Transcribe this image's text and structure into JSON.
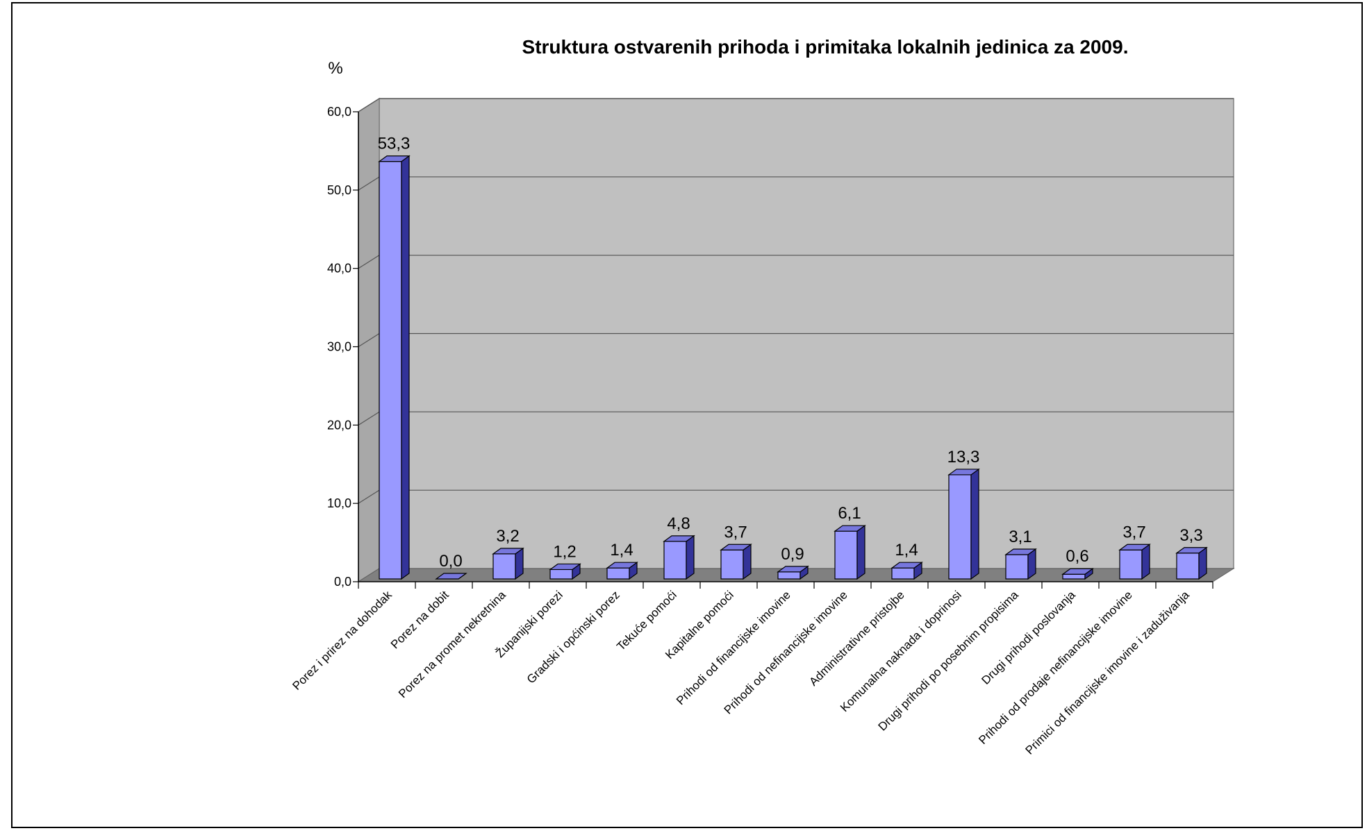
{
  "chart_data": {
    "type": "bar",
    "title": "Struktura ostvarenih prihoda i primitaka lokalnih jedinica za 2009.",
    "ylabel": "%",
    "ylim": [
      0,
      60
    ],
    "yticks": [
      "0,0",
      "10,0",
      "20,0",
      "30,0",
      "40,0",
      "50,0",
      "60,0"
    ],
    "grid": true,
    "categories": [
      "Porez i prirez na dohodak",
      "Porez na dobit",
      "Porez na promet nekretnina",
      "Županijski porezi",
      "Gradski i općinski porez",
      "Tekuće pomoći",
      "Kapitalne pomoći",
      "Prihodi od financijske imovine",
      "Prihodi od nefinancijske imovine",
      "Administrativne pristojbe",
      "Komunalna naknada i doprinosi",
      "Drugi prihodi po posebnim propisima",
      "Drugi prihodi poslovanja",
      "Prihodi od prodaje nefinancijske imovine",
      "Primici od financijske imovine i zaduživanja"
    ],
    "values": [
      53.3,
      0.0,
      3.2,
      1.2,
      1.4,
      4.8,
      3.7,
      0.9,
      6.1,
      1.4,
      13.3,
      3.1,
      0.6,
      3.7,
      3.3
    ],
    "value_labels": [
      "53,3",
      "0,0",
      "3,2",
      "1,2",
      "1,4",
      "4,8",
      "3,7",
      "0,9",
      "6,1",
      "1,4",
      "13,3",
      "3,1",
      "0,6",
      "3,7",
      "3,3"
    ],
    "colors": {
      "bar_front": "#9999ff",
      "bar_top": "#7777dd",
      "bar_side": "#333399",
      "back_wall": "#c0c0c0",
      "floor": "#808080",
      "left_wall": "#a8a8a8"
    }
  }
}
